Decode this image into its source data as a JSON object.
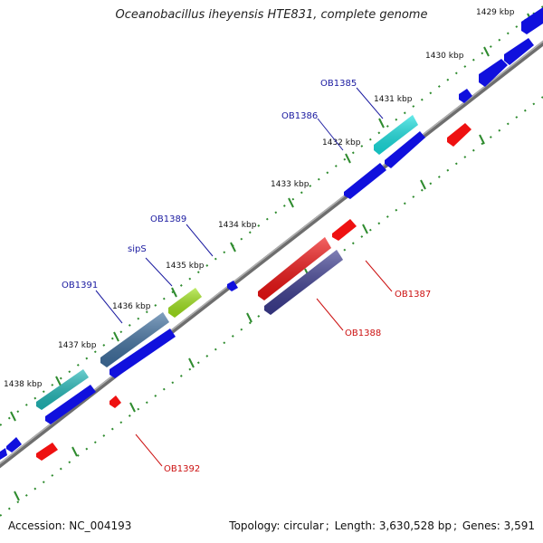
{
  "title": "Oceanobacillus iheyensis HTE831, complete genome",
  "footer": {
    "accession_label": "Accession:",
    "accession_value": "NC_004193",
    "topology_label": "Topology:",
    "topology_value": "circular",
    "length_label": "Length:",
    "length_value": "3,630,528 bp",
    "genes_label": "Genes:",
    "genes_value": "3,591"
  },
  "colors": {
    "backbone": "#8c8c8c",
    "tick": "#2e8b2e",
    "forward_label": "#1a1aa0",
    "reverse_label": "#cc1111",
    "gene_blue": "#1010dd",
    "gene_red": "#ee1111"
  },
  "scale_ticks": [
    "1429 kbp",
    "1430 kbp",
    "1431 kbp",
    "1432 kbp",
    "1433 kbp",
    "1434 kbp",
    "1435 kbp",
    "1436 kbp",
    "1437 kbp",
    "1438 kbp"
  ],
  "gene_labels_forward": [
    "OB1385",
    "OB1386",
    "OB1389",
    "sipS",
    "OB1391"
  ],
  "gene_labels_reverse": [
    "OB1387",
    "OB1388",
    "OB1392"
  ]
}
